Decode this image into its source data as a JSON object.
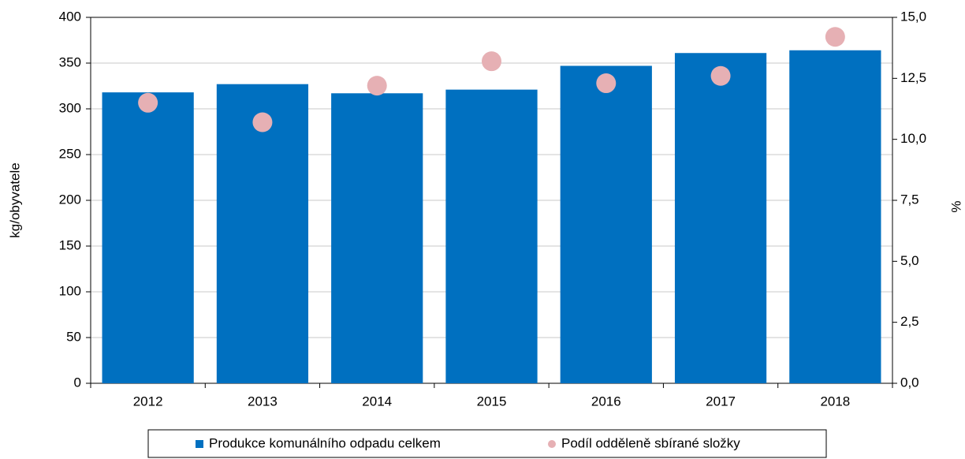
{
  "chart_data": {
    "type": "bar",
    "categories": [
      "2012",
      "2013",
      "2014",
      "2015",
      "2016",
      "2017",
      "2018"
    ],
    "series": [
      {
        "name": "Produkce komunálního odpadu celkem",
        "color": "#0070c0",
        "values": [
          318,
          327,
          317,
          321,
          347,
          361,
          364
        ]
      },
      {
        "name": "Podíl odděleně sbírané složky",
        "color": "#e6b0b4",
        "type": "scatter",
        "axis": "y2",
        "values": [
          11.5,
          10.7,
          12.2,
          13.2,
          12.3,
          12.6,
          14.2
        ]
      }
    ],
    "ylabel": "kg/obyvatele",
    "y2label": "%",
    "ylim": [
      0,
      400
    ],
    "yticks": [
      0,
      50,
      100,
      150,
      200,
      250,
      300,
      350,
      400
    ],
    "y2lim": [
      0,
      15
    ],
    "y2ticks": [
      {
        "value": 0,
        "label": "0,0"
      },
      {
        "value": 2.5,
        "label": "2,5"
      },
      {
        "value": 5,
        "label": "5,0"
      },
      {
        "value": 7.5,
        "label": "7,5"
      },
      {
        "value": 10,
        "label": "10,0"
      },
      {
        "value": 12.5,
        "label": "12,5"
      },
      {
        "value": 15,
        "label": "15,0"
      }
    ],
    "grid": true,
    "legend": "bottom"
  }
}
